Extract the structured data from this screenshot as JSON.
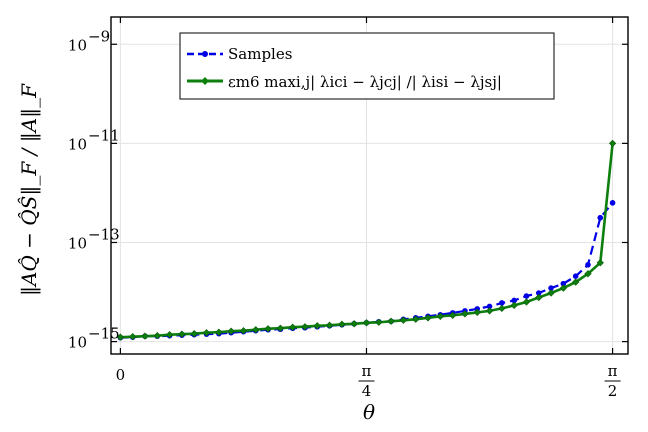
{
  "chart_data": {
    "type": "line",
    "title": "",
    "xlabel": "θ",
    "ylabel": "‖AQ̂ − Q̂Ŝ‖_F / ‖A‖_F",
    "yscale": "log",
    "xlim": [
      -0.03,
      1.62
    ],
    "ylim_exponent": [
      -15.25,
      -8.45
    ],
    "x_ticks": [
      {
        "value": 0,
        "label": "0"
      },
      {
        "value": 0.7853981634,
        "label_num": "π",
        "label_den": "4"
      },
      {
        "value": 1.5707963268,
        "label_num": "π",
        "label_den": "2"
      }
    ],
    "y_ticks": [
      {
        "exp": -9,
        "label": "10",
        "sup": "−9"
      },
      {
        "exp": -11,
        "label": "10",
        "sup": "−11"
      },
      {
        "exp": -13,
        "label": "10",
        "sup": "−13"
      },
      {
        "exp": -15,
        "label": "10",
        "sup": "−15"
      }
    ],
    "grid": true,
    "legend_position": "top-center",
    "x": [
      0,
      0.0393,
      0.0785,
      0.1178,
      0.1571,
      0.1963,
      0.2356,
      0.2749,
      0.3142,
      0.3534,
      0.3927,
      0.432,
      0.4712,
      0.5105,
      0.5498,
      0.589,
      0.6283,
      0.6676,
      0.7069,
      0.7461,
      0.7854,
      0.8247,
      0.8639,
      0.9032,
      0.9425,
      0.9817,
      1.021,
      1.0603,
      1.0996,
      1.1388,
      1.1781,
      1.2174,
      1.2566,
      1.2959,
      1.3352,
      1.3744,
      1.4137,
      1.453,
      1.4923,
      1.5315,
      1.5708
    ],
    "series": [
      {
        "name": "Samples",
        "color": "#0000e6",
        "style": "dashed",
        "marker": "circle",
        "y_exp": [
          -14.92,
          -14.91,
          -14.89,
          -14.89,
          -14.88,
          -14.87,
          -14.86,
          -14.85,
          -14.84,
          -14.82,
          -14.8,
          -14.78,
          -14.76,
          -14.75,
          -14.73,
          -14.72,
          -14.7,
          -14.68,
          -14.66,
          -14.64,
          -14.62,
          -14.6,
          -14.59,
          -14.55,
          -14.52,
          -14.49,
          -14.46,
          -14.42,
          -14.38,
          -14.34,
          -14.29,
          -14.22,
          -14.17,
          -14.08,
          -14.02,
          -13.92,
          -13.83,
          -13.68,
          -13.45,
          -12.5,
          -12.2
        ]
      },
      {
        "name_prefix": "ε",
        "name_text": "εm6 maxi,j| λici − λjcj| /| λisi − λjsj|",
        "color": "#0d7f0d",
        "style": "solid",
        "marker": "diamond",
        "y_exp": [
          -14.91,
          -14.9,
          -14.89,
          -14.88,
          -14.86,
          -14.85,
          -14.84,
          -14.82,
          -14.81,
          -14.79,
          -14.78,
          -14.76,
          -14.74,
          -14.73,
          -14.71,
          -14.7,
          -14.68,
          -14.67,
          -14.65,
          -14.64,
          -14.62,
          -14.61,
          -14.59,
          -14.57,
          -14.55,
          -14.52,
          -14.49,
          -14.47,
          -14.44,
          -14.41,
          -14.38,
          -14.33,
          -14.27,
          -14.2,
          -14.11,
          -14.02,
          -13.92,
          -13.8,
          -13.63,
          -13.41,
          -11.0
        ]
      }
    ]
  }
}
